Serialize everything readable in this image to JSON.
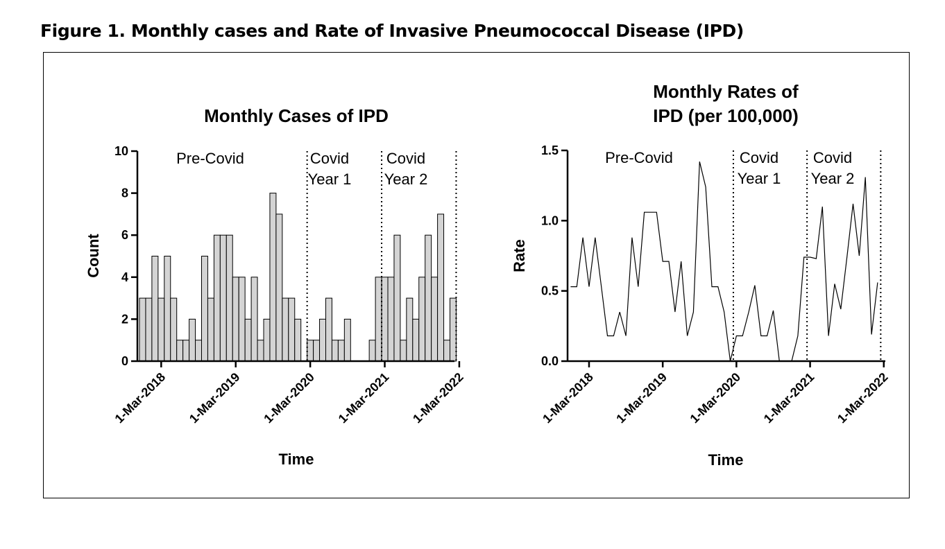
{
  "figure_title": "Figure 1.  Monthly cases and Rate of Invasive Pneumococcal Disease (IPD)",
  "chart_data": [
    {
      "type": "bar",
      "title": "Monthly Cases of IPD",
      "xlabel": "Time",
      "ylabel": "Count",
      "ylim": [
        0,
        10
      ],
      "yticks": [
        "0",
        "2",
        "4",
        "6",
        "8",
        "10"
      ],
      "xtick_labels": [
        "1-Mar-2018",
        "1-Mar-2019",
        "1-Mar-2020",
        "1-Mar-2021",
        "1-Mar-2022"
      ],
      "period_labels": [
        [
          "Pre-Covid"
        ],
        [
          "Covid",
          "Year 1"
        ],
        [
          "Covid",
          "Year 2"
        ]
      ],
      "x_start": "2017-12",
      "values": [
        3,
        3,
        5,
        3,
        5,
        3,
        1,
        1,
        2,
        1,
        5,
        3,
        6,
        6,
        6,
        4,
        4,
        2,
        4,
        1,
        2,
        8,
        7,
        3,
        3,
        2,
        null,
        1,
        1,
        2,
        3,
        1,
        1,
        2,
        null,
        null,
        null,
        1,
        4,
        4,
        4,
        6,
        1,
        3,
        2,
        4,
        6,
        4,
        7,
        1,
        3
      ],
      "grid": false
    },
    {
      "type": "line",
      "title": "Monthly Rates of\nIPD (per 100,000)",
      "xlabel": "Time",
      "ylabel": "Rate",
      "ylim": [
        0,
        1.5
      ],
      "yticks": [
        "0.0",
        "0.5",
        "1.0",
        "1.5"
      ],
      "xtick_labels": [
        "1-Mar-2018",
        "1-Mar-2019",
        "1-Mar-2020",
        "1-Mar-2021",
        "1-Mar-2022"
      ],
      "period_labels": [
        [
          "Pre-Covid"
        ],
        [
          "Covid",
          "Year 1"
        ],
        [
          "Covid",
          "Year 2"
        ]
      ],
      "x_start": "2017-12",
      "values": [
        0.53,
        0.53,
        0.88,
        0.53,
        0.88,
        0.53,
        0.18,
        0.18,
        0.35,
        0.18,
        0.88,
        0.53,
        1.06,
        1.06,
        1.06,
        0.71,
        0.71,
        0.35,
        0.71,
        0.18,
        0.35,
        1.42,
        1.24,
        0.53,
        0.53,
        0.35,
        0,
        0.18,
        0.18,
        0.35,
        0.54,
        0.18,
        0.18,
        0.36,
        0,
        0,
        0,
        0.18,
        0.74,
        0.74,
        0.73,
        1.1,
        0.18,
        0.55,
        0.37,
        0.74,
        1.12,
        0.75,
        1.31,
        0.19,
        0.56
      ],
      "grid": false
    }
  ]
}
